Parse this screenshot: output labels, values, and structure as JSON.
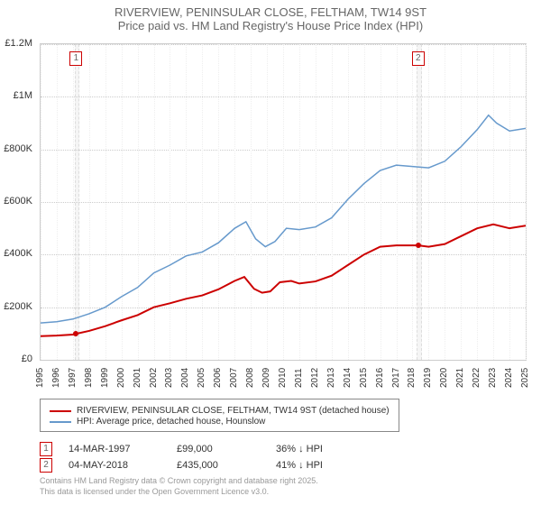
{
  "title": {
    "line1": "RIVERVIEW, PENINSULAR CLOSE, FELTHAM, TW14 9ST",
    "line2": "Price paid vs. HM Land Registry's House Price Index (HPI)",
    "fontsize": 13,
    "color": "#666666"
  },
  "chart": {
    "type": "line",
    "background_color": "#ffffff",
    "grid_color": "#cccccc",
    "plot_border_color": "#cccccc",
    "ylim": [
      0,
      1200000
    ],
    "ytick_step": 200000,
    "y_labels": [
      "£0",
      "£200K",
      "£400K",
      "£600K",
      "£800K",
      "£1M",
      "£1.2M"
    ],
    "y_fontsize": 11,
    "x_range_years": [
      1995,
      2025
    ],
    "x_labels": [
      "1995",
      "1996",
      "1997",
      "1998",
      "1999",
      "2000",
      "2001",
      "2002",
      "2003",
      "2004",
      "2005",
      "2006",
      "2007",
      "2008",
      "2009",
      "2010",
      "2011",
      "2012",
      "2013",
      "2014",
      "2015",
      "2016",
      "2017",
      "2018",
      "2019",
      "2020",
      "2021",
      "2022",
      "2023",
      "2024",
      "2025"
    ],
    "x_fontsize": 10,
    "highlight_bands": [
      {
        "year_start": 1997.1,
        "year_end": 1997.3,
        "color": "#f5f5f5",
        "border_dash": "#dddddd"
      },
      {
        "year_start": 2018.25,
        "year_end": 2018.45,
        "color": "#f5f5f5",
        "border_dash": "#dddddd"
      }
    ],
    "series": [
      {
        "id": "price_paid",
        "label": "RIVERVIEW, PENINSULAR CLOSE, FELTHAM, TW14 9ST (detached house)",
        "color": "#cc0000",
        "line_width": 2,
        "data": [
          [
            1995.0,
            90000
          ],
          [
            1996.0,
            92000
          ],
          [
            1997.0,
            96000
          ],
          [
            1997.2,
            99000
          ],
          [
            1998.0,
            110000
          ],
          [
            1999.0,
            128000
          ],
          [
            2000.0,
            150000
          ],
          [
            2001.0,
            170000
          ],
          [
            2002.0,
            200000
          ],
          [
            2003.0,
            215000
          ],
          [
            2004.0,
            232000
          ],
          [
            2005.0,
            245000
          ],
          [
            2006.0,
            268000
          ],
          [
            2007.0,
            300000
          ],
          [
            2007.6,
            315000
          ],
          [
            2008.2,
            270000
          ],
          [
            2008.7,
            255000
          ],
          [
            2009.2,
            260000
          ],
          [
            2009.8,
            295000
          ],
          [
            2010.5,
            300000
          ],
          [
            2011.0,
            290000
          ],
          [
            2012.0,
            298000
          ],
          [
            2013.0,
            320000
          ],
          [
            2014.0,
            360000
          ],
          [
            2015.0,
            400000
          ],
          [
            2016.0,
            430000
          ],
          [
            2017.0,
            435000
          ],
          [
            2018.0,
            435000
          ],
          [
            2018.35,
            435000
          ],
          [
            2019.0,
            430000
          ],
          [
            2020.0,
            440000
          ],
          [
            2021.0,
            470000
          ],
          [
            2022.0,
            500000
          ],
          [
            2023.0,
            515000
          ],
          [
            2024.0,
            500000
          ],
          [
            2025.0,
            510000
          ]
        ]
      },
      {
        "id": "hpi",
        "label": "HPI: Average price, detached house, Hounslow",
        "color": "#6699cc",
        "line_width": 1.5,
        "data": [
          [
            1995.0,
            140000
          ],
          [
            1996.0,
            145000
          ],
          [
            1997.0,
            155000
          ],
          [
            1998.0,
            175000
          ],
          [
            1999.0,
            200000
          ],
          [
            2000.0,
            240000
          ],
          [
            2001.0,
            275000
          ],
          [
            2002.0,
            330000
          ],
          [
            2003.0,
            360000
          ],
          [
            2004.0,
            395000
          ],
          [
            2005.0,
            410000
          ],
          [
            2006.0,
            445000
          ],
          [
            2007.0,
            500000
          ],
          [
            2007.7,
            525000
          ],
          [
            2008.3,
            460000
          ],
          [
            2008.9,
            430000
          ],
          [
            2009.5,
            450000
          ],
          [
            2010.2,
            500000
          ],
          [
            2011.0,
            495000
          ],
          [
            2012.0,
            505000
          ],
          [
            2013.0,
            540000
          ],
          [
            2014.0,
            610000
          ],
          [
            2015.0,
            670000
          ],
          [
            2016.0,
            720000
          ],
          [
            2017.0,
            740000
          ],
          [
            2018.0,
            735000
          ],
          [
            2019.0,
            730000
          ],
          [
            2020.0,
            755000
          ],
          [
            2021.0,
            810000
          ],
          [
            2022.0,
            875000
          ],
          [
            2022.7,
            930000
          ],
          [
            2023.2,
            900000
          ],
          [
            2024.0,
            870000
          ],
          [
            2025.0,
            880000
          ]
        ]
      }
    ],
    "price_markers": [
      {
        "n": "1",
        "year": 1997.2,
        "value": 99000,
        "border_color": "#cc0000",
        "dot_color": "#cc0000"
      },
      {
        "n": "2",
        "year": 2018.35,
        "value": 435000,
        "border_color": "#cc0000",
        "dot_color": "#cc0000"
      }
    ]
  },
  "legend": {
    "border_color": "#888888",
    "fontsize": 10,
    "rows": [
      {
        "color": "#cc0000",
        "label": "RIVERVIEW, PENINSULAR CLOSE, FELTHAM, TW14 9ST (detached house)"
      },
      {
        "color": "#6699cc",
        "label": "HPI: Average price, detached house, Hounslow"
      }
    ]
  },
  "datapoints": {
    "fontsize": 11,
    "rows": [
      {
        "n": "1",
        "border_color": "#cc0000",
        "date": "14-MAR-1997",
        "price": "£99,000",
        "hpi": "36% ↓ HPI"
      },
      {
        "n": "2",
        "border_color": "#cc0000",
        "date": "04-MAY-2018",
        "price": "£435,000",
        "hpi": "41% ↓ HPI"
      }
    ]
  },
  "credits": {
    "line1": "Contains HM Land Registry data © Crown copyright and database right 2025.",
    "line2": "This data is licensed under the Open Government Licence v3.0.",
    "fontsize": 9,
    "color": "#999999"
  }
}
